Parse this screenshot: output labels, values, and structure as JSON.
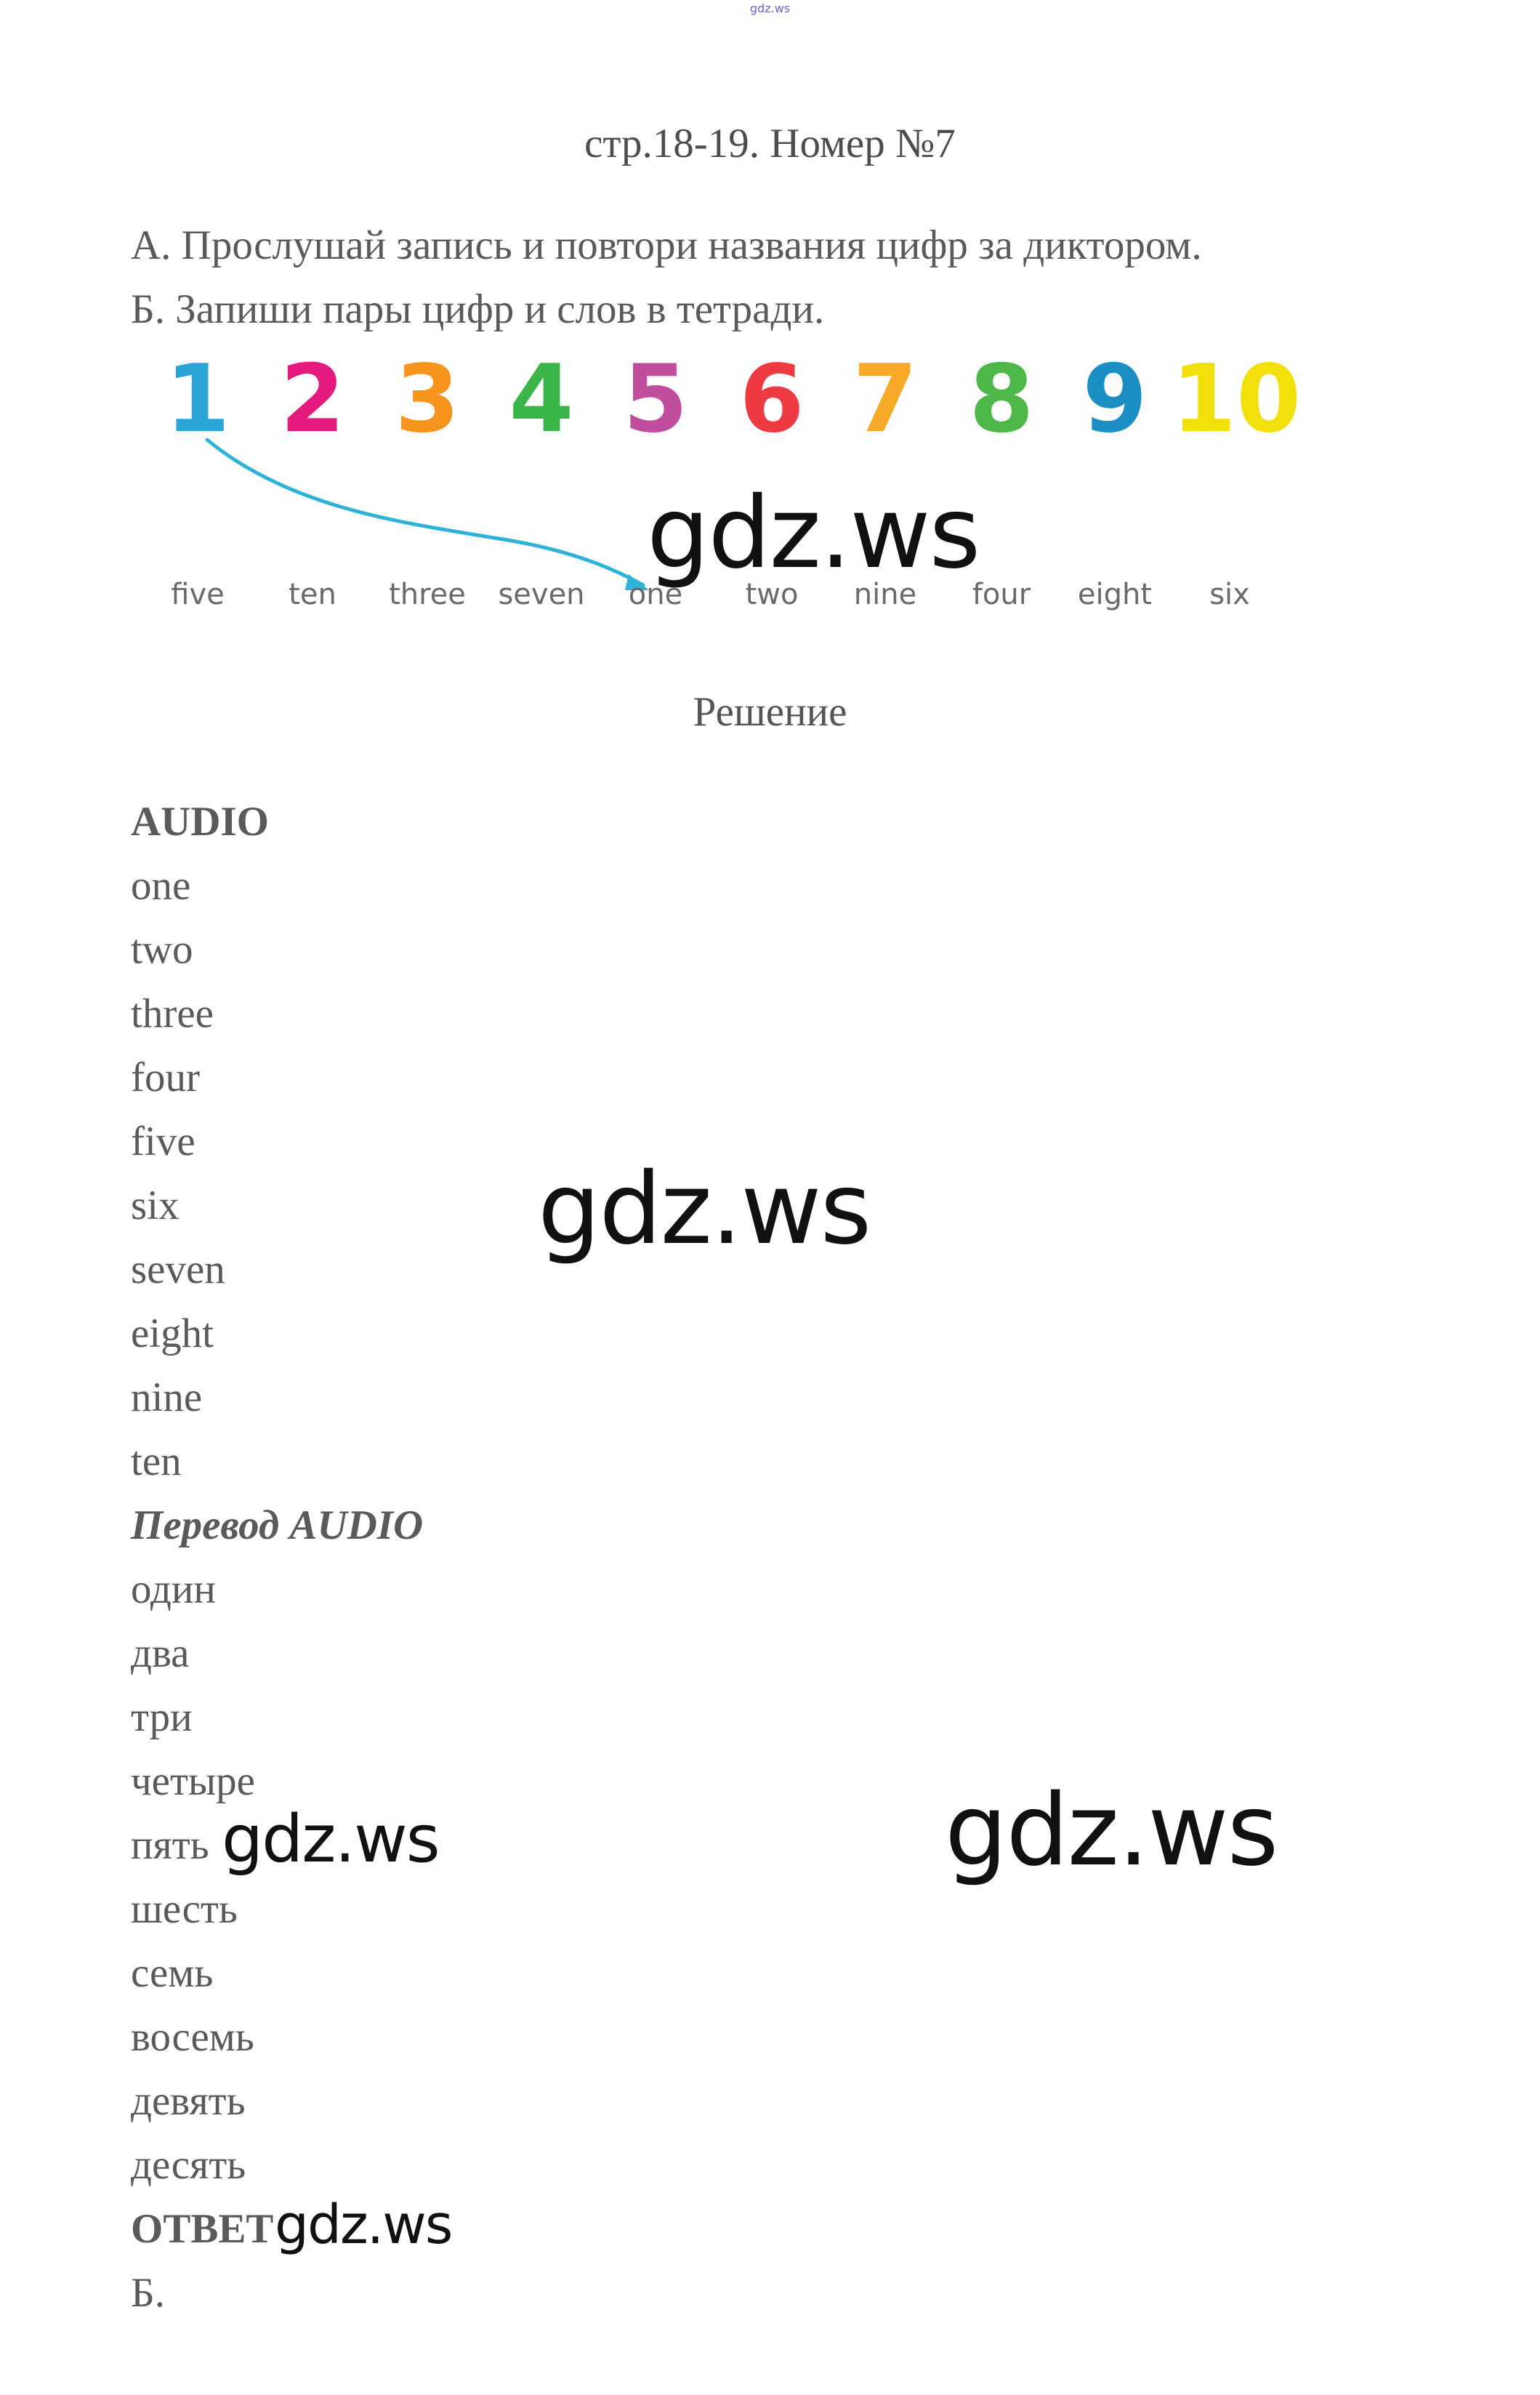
{
  "top_mark": "gdz.ws",
  "page_title": "стр.18-19. Номер №7",
  "tasks": [
    "А. Прослушай запись и повтори названия цифр за диктором.",
    "Б. Запиши пары цифр и слов в тетради."
  ],
  "digits": [
    {
      "label": "1",
      "color": "#2aa5d6"
    },
    {
      "label": "2",
      "color": "#e6197f"
    },
    {
      "label": "3",
      "color": "#f7941d"
    },
    {
      "label": "4",
      "color": "#39b54a"
    },
    {
      "label": "5",
      "color": "#c04d9e"
    },
    {
      "label": "6",
      "color": "#ee3a43"
    },
    {
      "label": "7",
      "color": "#f9a928"
    },
    {
      "label": "8",
      "color": "#4db848"
    },
    {
      "label": "9",
      "color": "#1b8fc4"
    },
    {
      "label": "10",
      "color": "#f2e00b"
    }
  ],
  "words": [
    "five",
    "ten",
    "three",
    "seven",
    "one",
    "two",
    "nine",
    "four",
    "eight",
    "six"
  ],
  "arrow_color": "#2fb2d8",
  "section_title": "Решение",
  "audio_heading": "AUDIO",
  "audio_words": [
    "one",
    "two",
    "three",
    "four",
    "five",
    "six",
    "seven",
    "eight",
    "nine",
    "ten"
  ],
  "translation_heading": "Перевод AUDIO",
  "translation_words": [
    "один",
    "два",
    "три",
    "четыре",
    "пять",
    "шесть",
    "семь",
    "восемь",
    "девять",
    "десять"
  ],
  "answer_heading": "ОТВЕТ",
  "answer_b": "Б.",
  "watermark_text": "gdz.ws"
}
